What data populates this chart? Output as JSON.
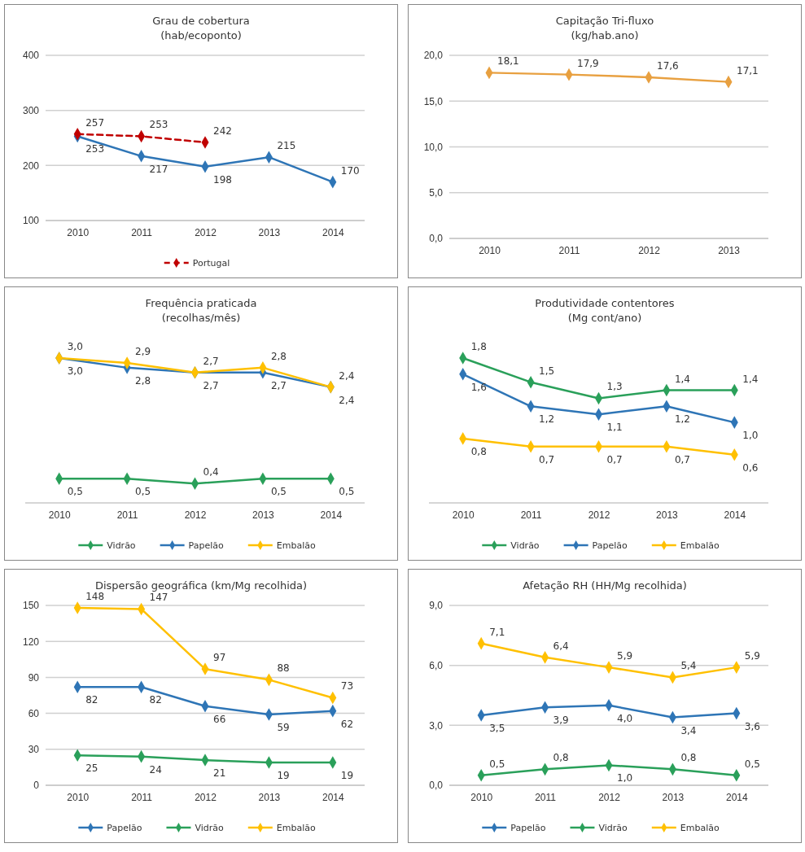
{
  "chart_data": [
    {
      "type": "line",
      "title": "Grau de cobertura",
      "subtitle": "(hab/ecoponto)",
      "categories": [
        "2010",
        "2011",
        "2012",
        "2013",
        "2014"
      ],
      "ylim": [
        100,
        400
      ],
      "yticks": [
        100,
        200,
        300,
        400
      ],
      "grid": "y",
      "legend": "bottom",
      "marker": "diamond",
      "tick_labels": true,
      "series": [
        {
          "color": "#2e75b6",
          "values": [
            253,
            217,
            198,
            215,
            170
          ],
          "value_labels": [
            "253",
            "217",
            "198",
            "215",
            "170"
          ]
        },
        {
          "name": "Portugal",
          "color": "#c00000",
          "line_style": "dashed",
          "values": [
            257,
            253,
            242,
            null,
            null
          ],
          "value_labels": [
            "257",
            "253",
            "242",
            null,
            null
          ]
        }
      ]
    },
    {
      "type": "line",
      "title": "Capitação Tri-fluxo",
      "subtitle": "(kg/hab.ano)",
      "categories": [
        "2010",
        "2011",
        "2012",
        "2013"
      ],
      "ylim": [
        0,
        20
      ],
      "yticks": [
        {
          "value": 0,
          "label": "0,0"
        },
        {
          "value": 5,
          "label": "5,0"
        },
        {
          "value": 10,
          "label": "10,0"
        },
        {
          "value": 15,
          "label": "15,0"
        },
        {
          "value": 20,
          "label": "20,0"
        }
      ],
      "grid": "y",
      "marker": "diamond",
      "series": [
        {
          "color": "#e8a040",
          "values": [
            18.1,
            17.9,
            17.6,
            17.1
          ],
          "value_labels": [
            "18,1",
            "17,9",
            "17,6",
            "17,1"
          ]
        }
      ]
    },
    {
      "type": "line",
      "title": "Frequência praticada",
      "subtitle": "(recolhas/mês)",
      "categories": [
        "2010",
        "2011",
        "2012",
        "2013",
        "2014"
      ],
      "tick_labels": "x",
      "legend": "bottom",
      "marker": "diamond",
      "series": [
        {
          "name": "Vidrão",
          "color": "#2aa05a",
          "values": [
            0.5,
            0.5,
            0.4,
            0.5,
            0.5
          ],
          "value_labels": [
            "0,5",
            "0,5",
            "0,4",
            "0,5",
            "0,5"
          ]
        },
        {
          "name": "Papelão",
          "color": "#2e75b6",
          "values": [
            3.0,
            2.8,
            2.7,
            2.7,
            2.4
          ],
          "value_labels": [
            "3,0",
            "2,8",
            "2,7",
            "2,7",
            "2,4"
          ]
        },
        {
          "name": "Embalão",
          "color": "#ffc000",
          "values": [
            3.0,
            2.9,
            2.7,
            2.8,
            2.4
          ],
          "value_labels": [
            "3,0",
            "2,9",
            "2,7",
            "2,8",
            "2,4"
          ]
        }
      ]
    },
    {
      "type": "line",
      "title": "Produtividade contentores",
      "subtitle": "(Mg cont/ano)",
      "categories": [
        "2010",
        "2011",
        "2012",
        "2013",
        "2014"
      ],
      "tick_labels": "x",
      "legend": "bottom",
      "marker": "diamond",
      "series": [
        {
          "name": "Vidrão",
          "color": "#2aa05a",
          "values": [
            1.8,
            1.5,
            1.3,
            1.4,
            1.4
          ],
          "value_labels": [
            "1,8",
            "1,5",
            "1,3",
            "1,4",
            "1,4"
          ]
        },
        {
          "name": "Papelão",
          "color": "#2e75b6",
          "values": [
            1.6,
            1.2,
            1.1,
            1.2,
            1.0
          ],
          "value_labels": [
            "1,6",
            "1,2",
            "1,1",
            "1,2",
            "1,0"
          ]
        },
        {
          "name": "Embalão",
          "color": "#ffc000",
          "values": [
            0.8,
            0.7,
            0.7,
            0.7,
            0.6
          ],
          "value_labels": [
            "0,8",
            "0,7",
            "0,7",
            "0,7",
            "0,6"
          ]
        }
      ]
    },
    {
      "type": "line",
      "title": "Dispersão geográfica (km/Mg recolhida)",
      "categories": [
        "2010",
        "2011",
        "2012",
        "2013",
        "2014"
      ],
      "ylim": [
        0,
        150
      ],
      "yticks": [
        0,
        30,
        60,
        90,
        120,
        150
      ],
      "grid": "y",
      "legend": "bottom",
      "marker": "diamond",
      "series": [
        {
          "name": "Papelão",
          "color": "#2e75b6",
          "values": [
            82,
            82,
            66,
            59,
            62
          ],
          "value_labels": [
            "82",
            "82",
            "66",
            "59",
            "62"
          ]
        },
        {
          "name": "Vidrão",
          "color": "#2aa05a",
          "values": [
            25,
            24,
            21,
            19,
            19
          ],
          "value_labels": [
            "25",
            "24",
            "21",
            "19",
            "19"
          ]
        },
        {
          "name": "Embalão",
          "color": "#ffc000",
          "values": [
            148,
            147,
            97,
            88,
            73
          ],
          "value_labels": [
            "148",
            "147",
            "97",
            "88",
            "73"
          ]
        }
      ]
    },
    {
      "type": "line",
      "title": "Afetação RH (HH/Mg recolhida)",
      "categories": [
        "2010",
        "2011",
        "2012",
        "2013",
        "2014"
      ],
      "ylim": [
        0,
        9
      ],
      "yticks": [
        {
          "value": 0,
          "label": "0,0"
        },
        {
          "value": 3,
          "label": "3,0"
        },
        {
          "value": 6,
          "label": "6,0"
        },
        {
          "value": 9,
          "label": "9,0"
        }
      ],
      "grid": "y",
      "legend": "bottom",
      "marker": "diamond",
      "series": [
        {
          "name": "Papelão",
          "color": "#2e75b6",
          "values": [
            3.5,
            3.9,
            4.0,
            3.4,
            3.6
          ],
          "value_labels": [
            "3,5",
            "3,9",
            "4,0",
            "3,4",
            "3,6"
          ]
        },
        {
          "name": "Vidrão",
          "color": "#2aa05a",
          "values": [
            0.5,
            0.8,
            1.0,
            0.8,
            0.5
          ],
          "value_labels": [
            "0,5",
            "0,8",
            "1,0",
            "0,8",
            "0,5"
          ]
        },
        {
          "name": "Embalão",
          "color": "#ffc000",
          "values": [
            7.1,
            6.4,
            5.9,
            5.4,
            5.9
          ],
          "value_labels": [
            "7,1",
            "6,4",
            "5,9",
            "5,4",
            "5,9"
          ]
        }
      ]
    }
  ]
}
